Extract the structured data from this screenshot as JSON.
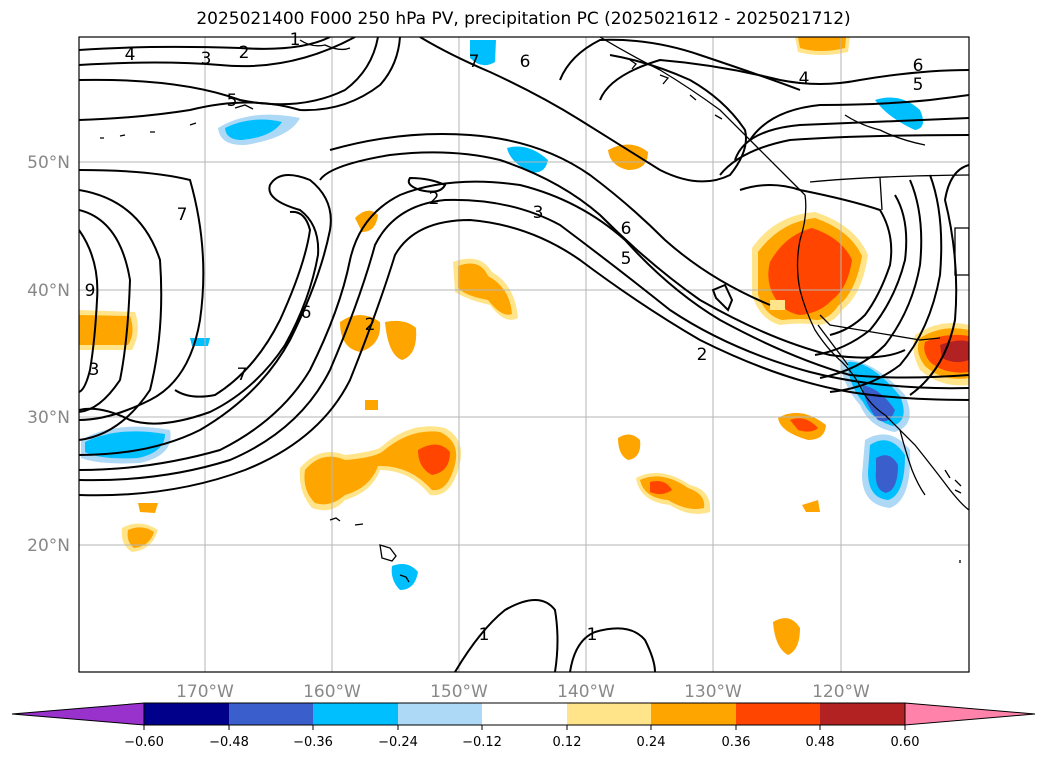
{
  "title": "2025021400 F000 250 hPa PV, precipitation PC (2025021612 - 2025021712)",
  "map": {
    "lon_labels": [
      "170°W",
      "160°W",
      "150°W",
      "140°W",
      "130°W",
      "120°W"
    ],
    "lat_labels": [
      "20°N",
      "30°N",
      "40°N",
      "50°N"
    ],
    "contour_labels": [
      "4",
      "3",
      "2",
      "1",
      "5",
      "6",
      "7",
      "2",
      "3",
      "6",
      "5",
      "2",
      "7",
      "9",
      "6",
      "7",
      "3",
      "2",
      "4",
      "5",
      "6",
      "1",
      "1"
    ],
    "colors": {
      "neg_extreme": "#9932cc",
      "neg_060": "#00008b",
      "neg_048": "#3a5fcd",
      "neg_036": "#00bfff",
      "neg_024": "#add8f6",
      "neutral": "#ffffff",
      "pos_012": "#ffe48a",
      "pos_024": "#ffa500",
      "pos_036": "#ff4500",
      "pos_048": "#b22222",
      "pos_extreme": "#ff82ab"
    }
  },
  "colorbar": {
    "labels": [
      "−0.60",
      "−0.48",
      "−0.36",
      "−0.24",
      "−0.12",
      "0.12",
      "0.24",
      "0.36",
      "0.48",
      "0.60"
    ],
    "segments": [
      "#00008b",
      "#3a5fcd",
      "#00bfff",
      "#add8f6",
      "#ffffff",
      "#ffe48a",
      "#ffa500",
      "#ff4500",
      "#b22222"
    ]
  }
}
